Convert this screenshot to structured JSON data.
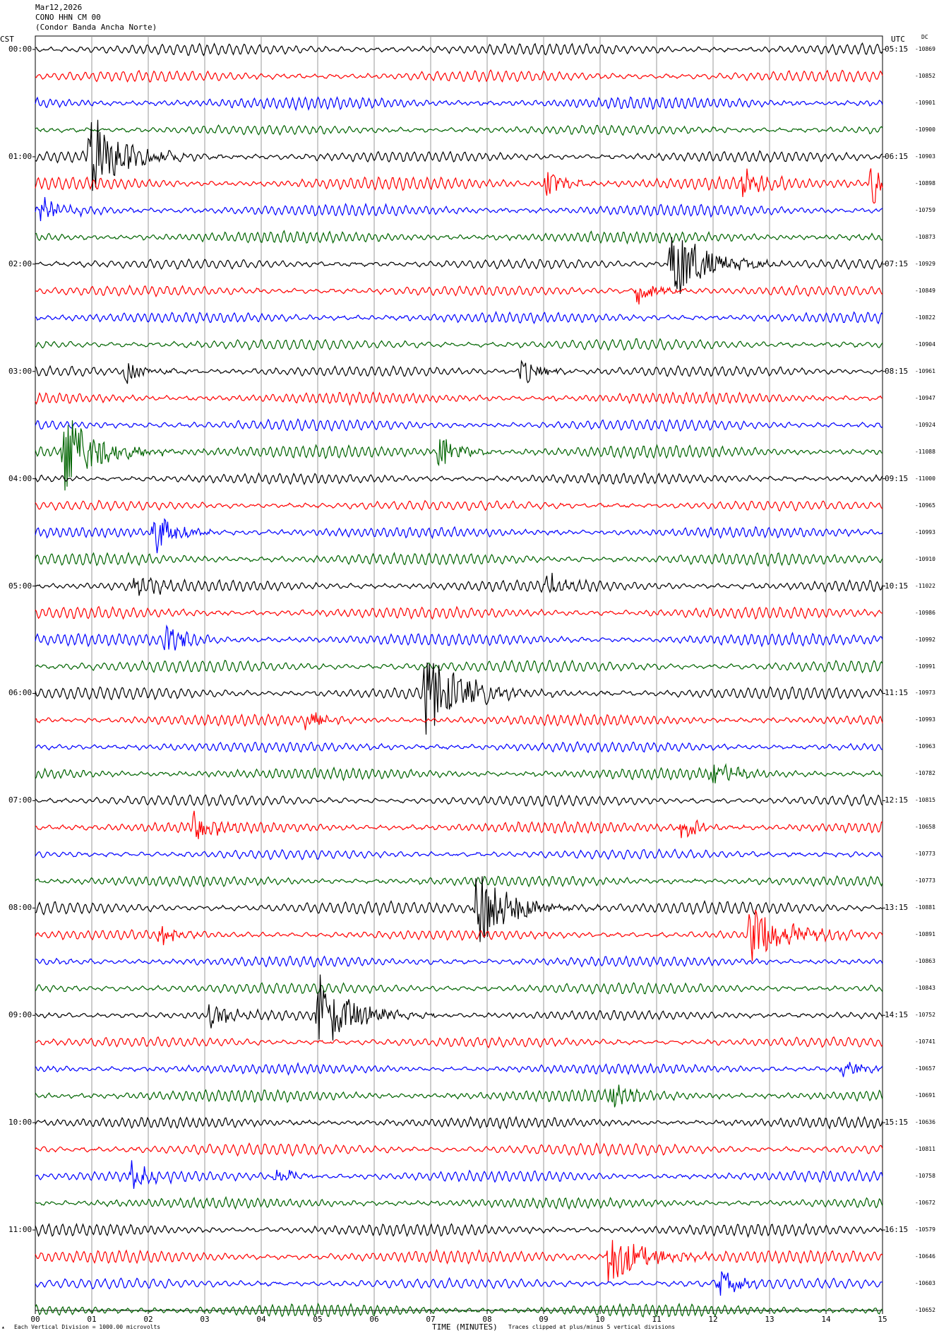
{
  "header": {
    "date": "Mar12,2026",
    "station": "CONO HHN CM 00",
    "name": "(Condor Banda Ancha Norte)"
  },
  "left_axis_label": "CST",
  "right_axis_label": "UTC",
  "dc_label": "DC",
  "footer": {
    "scale": "Each Vertical Division = 1000.00 microvolts",
    "xlabel": "TIME (MINUTES)",
    "clip": "Traces clipped at plus/minus 5 vertical divisions"
  },
  "colors": {
    "black": "#000000",
    "red": "#ff0000",
    "blue": "#0000ff",
    "green": "#006400",
    "grid": "#9a9a9a"
  },
  "chart_data": {
    "type": "line",
    "title": "Mar12,2026",
    "xlabel": "TIME (MINUTES)",
    "xlim": [
      0,
      15
    ],
    "x_ticks": [
      "00",
      "01",
      "02",
      "03",
      "04",
      "05",
      "06",
      "07",
      "08",
      "09",
      "10",
      "11",
      "12",
      "13",
      "14",
      "15"
    ],
    "color_cycle": [
      "black",
      "red",
      "blue",
      "green"
    ],
    "cst_labels": [
      "00:00",
      "01:00",
      "02:00",
      "03:00",
      "04:00",
      "05:00",
      "06:00",
      "07:00",
      "08:00",
      "09:00",
      "10:00",
      "11:00"
    ],
    "utc_labels": [
      "05:15",
      "06:15",
      "07:15",
      "08:15",
      "09:15",
      "10:15",
      "11:15",
      "12:15",
      "13:15",
      "14:15",
      "15:15",
      "16:15"
    ],
    "dc_offsets": [
      "-10869",
      "-10852",
      "-10901",
      "-10900",
      "-10903",
      "-10898",
      "-10759",
      "-10873",
      "-10929",
      "-10849",
      "-10822",
      "-10904",
      "-10961",
      "-10947",
      "-10924",
      "-11088",
      "-11000",
      "-10965",
      "-10993",
      "-10910",
      "-11022",
      "-10986",
      "-10992",
      "-10991",
      "-10973",
      "-10993",
      "-10963",
      "-10782",
      "-10815",
      "-10658",
      "-10773",
      "-10773",
      "-10881",
      "-10891",
      "-10863",
      "-10843",
      "-10752",
      "-10741",
      "-10657",
      "-10691",
      "-10636",
      "-10811",
      "-10758",
      "-10672",
      "-10579",
      "-10646",
      "-10603",
      "-10652"
    ],
    "events": [
      {
        "trace": 4,
        "minute": 0.95,
        "amp": 5
      },
      {
        "trace": 5,
        "minute": 9.05,
        "amp": 1.6
      },
      {
        "trace": 5,
        "minute": 12.5,
        "amp": 1.6
      },
      {
        "trace": 5,
        "minute": 14.8,
        "amp": 3
      },
      {
        "trace": 6,
        "minute": 0.1,
        "amp": 1.5
      },
      {
        "trace": 8,
        "minute": 11.25,
        "amp": 5
      },
      {
        "trace": 9,
        "minute": 10.65,
        "amp": 1.8
      },
      {
        "trace": 12,
        "minute": 1.6,
        "amp": 1.4
      },
      {
        "trace": 12,
        "minute": 8.6,
        "amp": 1.6
      },
      {
        "trace": 15,
        "minute": 0.5,
        "amp": 5
      },
      {
        "trace": 15,
        "minute": 7.15,
        "amp": 2.2
      },
      {
        "trace": 18,
        "minute": 2.1,
        "amp": 3
      },
      {
        "trace": 20,
        "minute": 1.75,
        "amp": 1.6
      },
      {
        "trace": 20,
        "minute": 9.05,
        "amp": 1.5
      },
      {
        "trace": 22,
        "minute": 2.3,
        "amp": 2.2
      },
      {
        "trace": 24,
        "minute": 6.9,
        "amp": 5
      },
      {
        "trace": 25,
        "minute": 4.8,
        "amp": 1.4
      },
      {
        "trace": 27,
        "minute": 12.0,
        "amp": 1.5
      },
      {
        "trace": 29,
        "minute": 2.8,
        "amp": 2
      },
      {
        "trace": 29,
        "minute": 11.45,
        "amp": 1.6
      },
      {
        "trace": 32,
        "minute": 7.8,
        "amp": 5
      },
      {
        "trace": 33,
        "minute": 2.2,
        "amp": 1.3
      },
      {
        "trace": 33,
        "minute": 12.65,
        "amp": 3.5
      },
      {
        "trace": 36,
        "minute": 5.0,
        "amp": 5
      },
      {
        "trace": 36,
        "minute": 3.1,
        "amp": 1.6
      },
      {
        "trace": 38,
        "minute": 14.3,
        "amp": 1.2
      },
      {
        "trace": 39,
        "minute": 10.2,
        "amp": 1.3
      },
      {
        "trace": 42,
        "minute": 1.7,
        "amp": 1.6
      },
      {
        "trace": 42,
        "minute": 4.2,
        "amp": 1.4
      },
      {
        "trace": 45,
        "minute": 10.15,
        "amp": 3.5
      },
      {
        "trace": 46,
        "minute": 12.1,
        "amp": 1.8
      }
    ]
  }
}
